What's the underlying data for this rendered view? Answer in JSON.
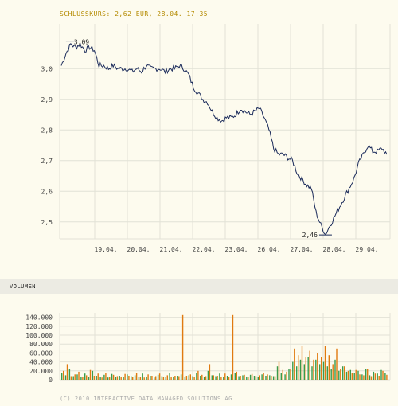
{
  "header": {
    "close_text": "SCHLUSSKURS: 2,62 EUR, 28.04. 17:35"
  },
  "volume_section": {
    "label": "VOLUMEN"
  },
  "footer": {
    "copyright": "(C) 2010 INTERACTIVE DATA MANAGED SOLUTIONS AG"
  },
  "colors": {
    "background": "#fdfbee",
    "price_line": "#1a2a5a",
    "grid": "#e2e2d6",
    "header_text": "#b48a00",
    "vol_orange": "#e07a10",
    "vol_green": "#3a9a4a"
  },
  "chart_data": [
    {
      "type": "line",
      "title": "",
      "xlabel": "",
      "ylabel": "",
      "ylim": [
        2.45,
        3.08
      ],
      "y_ticks": [
        3.0,
        2.9,
        2.8,
        2.7,
        2.6,
        2.5
      ],
      "y_tick_labels": [
        "3,0",
        "2,9",
        "2,8",
        "2,7",
        "2,6",
        "2,5"
      ],
      "x_tick_labels": [
        "19.04.",
        "20.04.",
        "21.04.",
        "22.04.",
        "23.04.",
        "26.04.",
        "27.04.",
        "28.04.",
        "29.04."
      ],
      "annotations": [
        {
          "label": "3,09",
          "value": 3.09
        },
        {
          "label": "2,46",
          "value": 2.46
        }
      ],
      "series": [
        {
          "values": [
            3.01,
            3.05,
            3.08,
            3.07,
            3.08,
            3.06,
            3.07,
            3.06,
            3.01,
            3.01,
            3.0,
            3.01,
            3.0,
            3.0,
            3.0,
            2.99,
            3.0,
            2.99,
            3.01,
            3.0,
            3.0,
            3.0,
            2.99,
            3.0,
            3.0,
            3.01,
            3.0,
            2.98,
            2.94,
            2.92,
            2.9,
            2.89,
            2.86,
            2.84,
            2.83,
            2.84,
            2.84,
            2.85,
            2.87,
            2.86,
            2.85,
            2.86,
            2.87,
            2.84,
            2.8,
            2.74,
            2.72,
            2.72,
            2.71,
            2.7,
            2.66,
            2.64,
            2.62,
            2.61,
            2.53,
            2.49,
            2.46,
            2.49,
            2.52,
            2.55,
            2.58,
            2.61,
            2.64,
            2.69,
            2.72,
            2.75,
            2.73,
            2.73,
            2.74,
            2.72
          ]
        }
      ]
    },
    {
      "type": "bar",
      "title": "",
      "ylim": [
        0,
        150000
      ],
      "y_ticks": [
        0,
        20000,
        40000,
        60000,
        80000,
        100000,
        120000,
        140000
      ],
      "y_tick_labels": [
        "0",
        "20.000",
        "40.000",
        "60.000",
        "80.000",
        "100.000",
        "120.000",
        "140.000"
      ],
      "series": [
        {
          "name": "",
          "values": [
            20000,
            35000,
            8000,
            12000,
            18000,
            6000,
            10000,
            22000,
            9000,
            14000,
            5000,
            16000,
            7000,
            11000,
            8000,
            6000,
            13000,
            9000,
            7000,
            15000,
            6000,
            5000,
            12000,
            9000,
            8000,
            14000,
            7000,
            10000,
            6000,
            9000,
            8000,
            145000,
            9000,
            12000,
            7000,
            20000,
            11000,
            8000,
            35000,
            10000,
            9000,
            7000,
            14000,
            6000,
            145000,
            18000,
            9000,
            11000,
            7000,
            13000,
            8000,
            10000,
            15000,
            12000,
            9000,
            8000,
            40000,
            22000,
            18000,
            24000,
            70000,
            55000,
            75000,
            50000,
            65000,
            45000,
            60000,
            50000,
            75000,
            55000,
            35000,
            70000,
            25000,
            30000,
            20000,
            15000,
            22000,
            12000,
            10000,
            25000,
            8000,
            14000,
            9000,
            20000,
            11000
          ]
        },
        {
          "name": "",
          "values": [
            15000,
            10000,
            25000,
            8000,
            12000,
            6000,
            14000,
            7000,
            20000,
            9000,
            6000,
            11000,
            5000,
            13000,
            7000,
            9000,
            6000,
            12000,
            8000,
            10000,
            6000,
            14000,
            7000,
            9000,
            5000,
            11000,
            8000,
            6000,
            16000,
            7000,
            9000,
            12000,
            6000,
            10000,
            8000,
            15000,
            9000,
            7000,
            20000,
            10000,
            8000,
            14000,
            6000,
            9000,
            12000,
            15000,
            8000,
            10000,
            6000,
            11000,
            9000,
            7000,
            12000,
            9000,
            10000,
            8000,
            30000,
            15000,
            12000,
            25000,
            40000,
            30000,
            45000,
            35000,
            50000,
            30000,
            45000,
            35000,
            40000,
            30000,
            25000,
            45000,
            20000,
            30000,
            18000,
            22000,
            15000,
            20000,
            12000,
            24000,
            10000,
            18000,
            14000,
            22000,
            16000
          ]
        }
      ]
    }
  ]
}
